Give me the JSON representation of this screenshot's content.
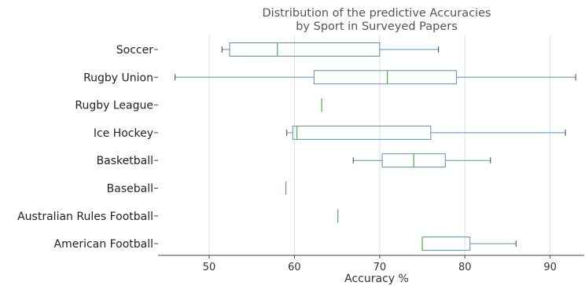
{
  "chart_data": {
    "type": "boxplot",
    "orientation": "horizontal",
    "title_line1": "Distribution of the predictive Accuracies",
    "title_line2": "by Sport in Surveyed Papers",
    "xlabel": "Accuracy %",
    "ylabel": "",
    "xlim": [
      44,
      94
    ],
    "xticks": [
      50,
      60,
      70,
      80,
      90
    ],
    "grid": "vertical",
    "colors": {
      "box": "#5b8fb9",
      "median": "#4caf50",
      "grid": "#e0e0e0",
      "axis": "#444444"
    },
    "categories": [
      "Soccer",
      "Rugby Union",
      "Rugby League",
      "Ice Hockey",
      "Basketball",
      "Baseball",
      "Australian Rules Football",
      "American Football"
    ],
    "boxes": [
      {
        "min": 51.5,
        "q1": 52.4,
        "median": 58.0,
        "q3": 70.0,
        "max": 76.9
      },
      {
        "min": 46.0,
        "q1": 62.3,
        "median": 70.9,
        "q3": 79.0,
        "max": 93.0
      },
      {
        "min": 63.2,
        "q1": 63.2,
        "median": 63.2,
        "q3": 63.2,
        "max": 63.2
      },
      {
        "min": 59.1,
        "q1": 59.8,
        "median": 60.3,
        "q3": 76.0,
        "max": 91.8
      },
      {
        "min": 66.9,
        "q1": 70.3,
        "median": 74.0,
        "q3": 77.7,
        "max": 83.0
      },
      {
        "min": 59.0,
        "q1": 59.0,
        "median": 59.0,
        "q3": 59.0,
        "max": 59.0
      },
      {
        "min": 65.1,
        "q1": 65.1,
        "median": 65.1,
        "q3": 65.1,
        "max": 65.1
      },
      {
        "min": 75.0,
        "q1": 75.0,
        "median": 75.0,
        "q3": 80.6,
        "max": 86.0
      }
    ]
  }
}
